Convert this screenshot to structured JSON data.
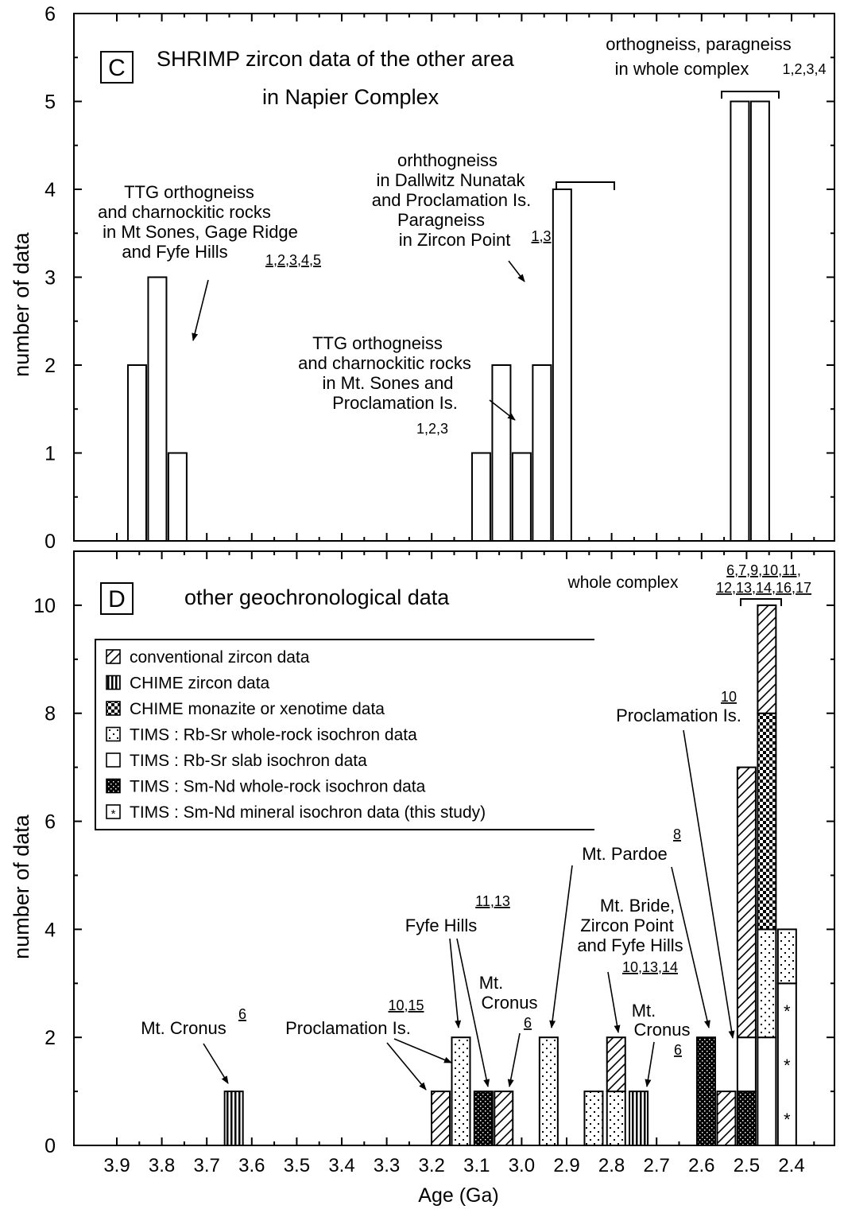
{
  "chart_data": [
    {
      "panel": "C",
      "type": "bar",
      "title_lines": [
        "SHRIMP zircon data of the other area",
        "in Napier Complex"
      ],
      "ylabel": "number of data",
      "ylim": [
        0,
        6
      ],
      "yticks": [
        "0",
        "1",
        "2",
        "3",
        "4",
        "5",
        "6"
      ],
      "x_axis_reversed": true,
      "bars": [
        {
          "age": 3.855,
          "count": 2
        },
        {
          "age": 3.81,
          "count": 3
        },
        {
          "age": 3.765,
          "count": 1
        },
        {
          "age": 3.09,
          "count": 1
        },
        {
          "age": 3.045,
          "count": 2
        },
        {
          "age": 3.0,
          "count": 1
        },
        {
          "age": 2.955,
          "count": 2
        },
        {
          "age": 2.91,
          "count": 4
        },
        {
          "age": 2.515,
          "count": 5
        },
        {
          "age": 2.47,
          "count": 5
        }
      ],
      "annotations": [
        {
          "lines": [
            "TTG orthogneiss",
            "and charnockitic rocks",
            "in Mt Sones, Gage Ridge",
            "and Fyfe Hills"
          ],
          "refs": "1,2,3,4,5"
        },
        {
          "lines": [
            "orhthogneiss",
            "in Dallwitz Nunatak",
            "and Proclamation Is.",
            "Paragneiss",
            "in Zircon Point"
          ],
          "refs": "1,3"
        },
        {
          "lines": [
            "TTG orthogneiss",
            "and charnockitic rocks",
            "in Mt. Sones and",
            "Proclamation Is."
          ],
          "refs": "1,2,3"
        },
        {
          "lines": [
            "orthogneiss, paragneiss",
            "in whole complex"
          ],
          "refs": "1,2,3,4"
        }
      ]
    },
    {
      "panel": "D",
      "type": "bar",
      "title": "other geochronological data",
      "xlabel": "Age (Ga)",
      "ylabel": "number of data",
      "ylim": [
        0,
        11
      ],
      "yticks": [
        "0",
        "2",
        "4",
        "6",
        "8",
        "10"
      ],
      "xticks": [
        "3.9",
        "3.8",
        "3.7",
        "3.6",
        "3.5",
        "3.4",
        "3.3",
        "3.2",
        "3.1",
        "3.0",
        "2.9",
        "2.8",
        "2.7",
        "2.6",
        "2.5",
        "2.4"
      ],
      "x_axis_reversed": true,
      "legend": [
        {
          "key": "conv",
          "label": "conventional zircon data"
        },
        {
          "key": "chz",
          "label": "CHIME  zircon data"
        },
        {
          "key": "chm",
          "label": "CHIME  monazite or xenotime data"
        },
        {
          "key": "rbw",
          "label": "TIMS : Rb-Sr whole-rock isochron data"
        },
        {
          "key": "rbs",
          "label": "TIMS : Rb-Sr slab isochron data"
        },
        {
          "key": "smw",
          "label": "TIMS : Sm-Nd whole-rock isochron data"
        },
        {
          "key": "smm",
          "label": "TIMS : Sm-Nd mineral isochron data (this study)"
        }
      ],
      "bars": [
        {
          "age": 3.64,
          "segments": [
            {
              "key": "chz",
              "count": 1
            }
          ]
        },
        {
          "age": 3.18,
          "segments": [
            {
              "key": "conv",
              "count": 1
            }
          ]
        },
        {
          "age": 3.135,
          "segments": [
            {
              "key": "rbw",
              "count": 2
            }
          ]
        },
        {
          "age": 3.085,
          "segments": [
            {
              "key": "smw",
              "count": 1
            }
          ]
        },
        {
          "age": 3.04,
          "segments": [
            {
              "key": "conv",
              "count": 1
            }
          ]
        },
        {
          "age": 2.94,
          "segments": [
            {
              "key": "rbw",
              "count": 2
            }
          ]
        },
        {
          "age": 2.84,
          "segments": [
            {
              "key": "rbw",
              "count": 1
            }
          ]
        },
        {
          "age": 2.79,
          "segments": [
            {
              "key": "rbw",
              "count": 1
            },
            {
              "key": "conv",
              "count": 1
            }
          ]
        },
        {
          "age": 2.74,
          "segments": [
            {
              "key": "chz",
              "count": 1
            }
          ]
        },
        {
          "age": 2.59,
          "segments": [
            {
              "key": "smw",
              "count": 2
            }
          ]
        },
        {
          "age": 2.545,
          "segments": [
            {
              "key": "conv",
              "count": 1
            }
          ]
        },
        {
          "age": 2.5,
          "segments": [
            {
              "key": "smw",
              "count": 1
            },
            {
              "key": "rbs",
              "count": 1
            },
            {
              "key": "conv",
              "count": 5
            }
          ]
        },
        {
          "age": 2.455,
          "segments": [
            {
              "key": "rbs",
              "count": 2
            },
            {
              "key": "rbw",
              "count": 2
            },
            {
              "key": "chm",
              "count": 4
            },
            {
              "key": "conv",
              "count": 2
            }
          ]
        },
        {
          "age": 2.41,
          "segments": [
            {
              "key": "smm",
              "count": 3
            },
            {
              "key": "rbw",
              "count": 1
            }
          ]
        }
      ],
      "annotations": [
        {
          "label": "whole complex",
          "refs": [
            "6,7,9,10,11,",
            "12,13,14,16,17"
          ]
        },
        {
          "label": "Proclamation Is.",
          "refs": "10"
        },
        {
          "label": "Mt. Pardoe",
          "refs": "8"
        },
        {
          "label": [
            "Mt. Bride,",
            "Zircon Point",
            "and Fyfe Hills"
          ],
          "refs": "10,13,14"
        },
        {
          "label": [
            "Mt.",
            "Cronus"
          ],
          "refs": "6"
        },
        {
          "label": "Fyfe Hills",
          "refs": "11,13"
        },
        {
          "label": [
            "Mt.",
            "Cronus"
          ],
          "refs": "6"
        },
        {
          "label": "Proclamation Is.",
          "refs": "10,15"
        },
        {
          "label": "Mt. Cronus",
          "refs": "6"
        }
      ]
    }
  ]
}
